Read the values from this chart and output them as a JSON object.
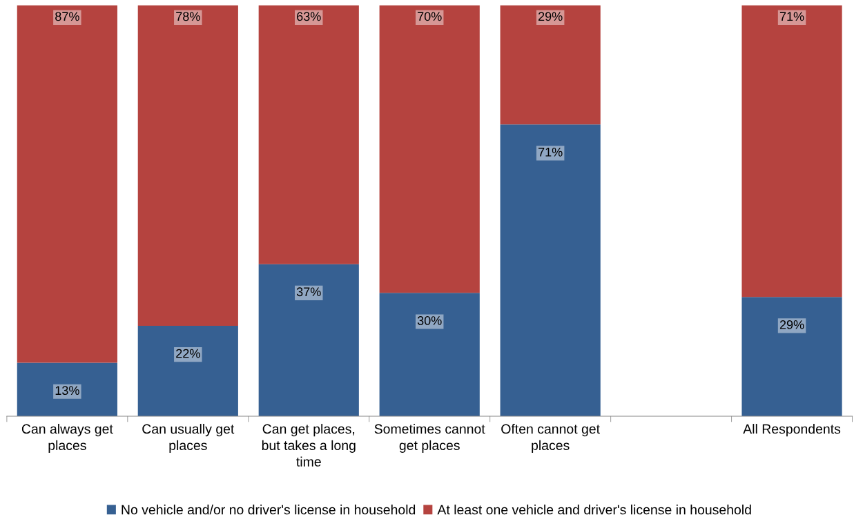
{
  "chart_data": {
    "type": "bar",
    "stacked": true,
    "categories": [
      "Can always get places",
      "Can usually get places",
      "Can get places, but takes a long time",
      "Sometimes cannot get places",
      "Often cannot get places",
      null,
      "All Respondents"
    ],
    "series": [
      {
        "name": "No vehicle and/or no driver's license in household",
        "color": "#366092",
        "values": [
          13,
          22,
          37,
          30,
          71,
          null,
          29
        ],
        "value_labels": [
          "13%",
          "22%",
          "37%",
          "30%",
          "71%",
          null,
          "29%"
        ]
      },
      {
        "name": "At least one vehicle and driver's license in household",
        "color": "#b5433f",
        "values": [
          87,
          78,
          63,
          70,
          29,
          null,
          71
        ],
        "value_labels": [
          "87%",
          "78%",
          "63%",
          "70%",
          "29%",
          null,
          "71%"
        ]
      }
    ],
    "legend": "bottom",
    "grid": false
  }
}
